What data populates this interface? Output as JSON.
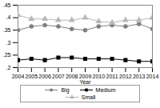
{
  "chart_data": {
    "type": "line",
    "x": [
      2004,
      2005,
      2006,
      2007,
      2008,
      2009,
      2010,
      2011,
      2012,
      2013,
      2014
    ],
    "x_label": "Year",
    "xlim": [
      2004,
      2014
    ],
    "xticks": [
      2004,
      2005,
      2006,
      2007,
      2008,
      2009,
      2010,
      2011,
      2012,
      2013,
      2014
    ],
    "ylim": [
      0.2,
      0.45
    ],
    "yticks": [
      {
        "value": 0.2,
        "label": ".2"
      },
      {
        "value": 0.25,
        "label": ".25"
      },
      {
        "value": 0.3,
        "label": ".3"
      },
      {
        "value": 0.35,
        "label": ".35"
      },
      {
        "value": 0.4,
        "label": ".4"
      },
      {
        "value": 0.45,
        "label": ".45"
      }
    ],
    "legend": "bottom",
    "series": [
      {
        "name": "Big",
        "color": "#808080",
        "marker": "circle",
        "values": [
          0.35,
          0.365,
          0.37,
          0.365,
          0.355,
          0.35,
          0.365,
          0.37,
          0.365,
          0.375,
          0.355
        ]
      },
      {
        "name": "Medium",
        "color": "#000000",
        "marker": "square",
        "values": [
          0.23,
          0.235,
          0.23,
          0.24,
          0.24,
          0.235,
          0.235,
          0.235,
          0.23,
          0.225,
          0.225
        ]
      },
      {
        "name": "Small",
        "color": "#b8b8b8",
        "marker": "triangle",
        "values": [
          0.41,
          0.395,
          0.395,
          0.39,
          0.39,
          0.4,
          0.385,
          0.38,
          0.39,
          0.39,
          0.4
        ]
      }
    ]
  }
}
